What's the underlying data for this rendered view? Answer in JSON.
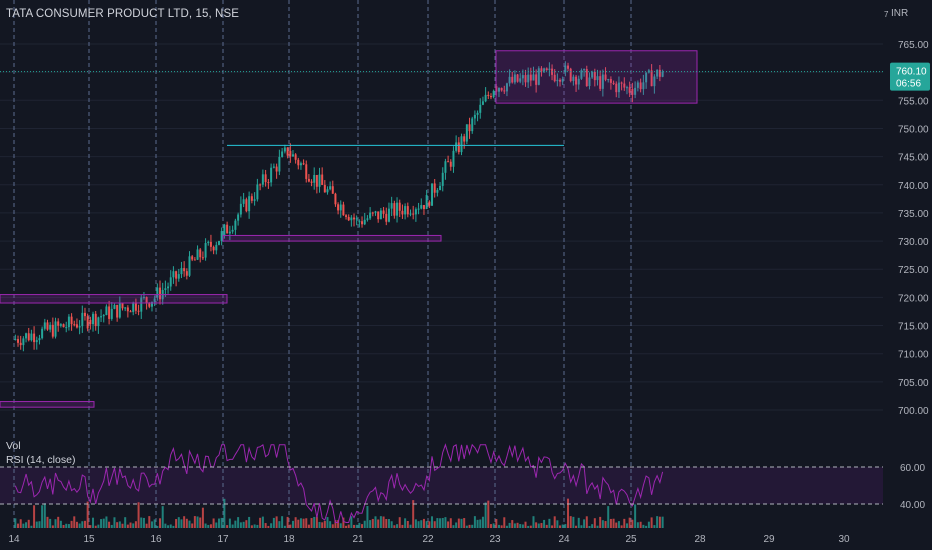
{
  "chart_data": [
    {
      "type": "candlestick",
      "title": "TATA CONSUMER PRODUCT LTD, 15, NSE",
      "currency": "INR",
      "x_ticks": [
        "14",
        "15",
        "16",
        "17",
        "18",
        "21",
        "22",
        "23",
        "24",
        "25",
        "28",
        "29",
        "30"
      ],
      "y_ticks": [
        700,
        705,
        710,
        715,
        720,
        725,
        730,
        735,
        740,
        745,
        750,
        755,
        760,
        765
      ],
      "ylim": [
        697,
        768
      ],
      "price_tag": {
        "value": "760.10",
        "countdown": "06:56",
        "color": "#26a69a"
      },
      "series_anchor_prices_by_day": [
        {
          "day": "14",
          "open": 712.5,
          "close": 716.0
        },
        {
          "day": "15",
          "open": 716.0,
          "close": 720.0
        },
        {
          "day": "16",
          "open": 720.0,
          "close": 731.0
        },
        {
          "day": "17",
          "open": 731.0,
          "close": 746.0
        },
        {
          "day": "18",
          "open": 746.0,
          "close": 733.5
        },
        {
          "day": "21",
          "open": 733.5,
          "close": 737.0
        },
        {
          "day": "22",
          "open": 737.0,
          "close": 757.5
        },
        {
          "day": "23",
          "open": 757.5,
          "close": 760.0
        },
        {
          "day": "24",
          "open": 760.0,
          "close": 757.0
        },
        {
          "day": "25",
          "open": 757.0,
          "close": 760.1
        }
      ],
      "annotations": [
        {
          "kind": "zone",
          "price_low": 719.0,
          "price_high": 720.5,
          "from_day": "14",
          "to_day": "17",
          "color": "#9c27b0"
        },
        {
          "kind": "zone",
          "price_low": 700.5,
          "price_high": 701.5,
          "from_day": "14",
          "to_day": "15",
          "color": "#9c27b0"
        },
        {
          "kind": "zone",
          "price_low": 730.0,
          "price_high": 731.0,
          "from_day": "17",
          "to_day": "22",
          "color": "#9c27b0"
        },
        {
          "kind": "trendline",
          "price": 747.0,
          "from_day": "17",
          "to_day": "24",
          "color": "#26c6da"
        },
        {
          "kind": "range_box",
          "price_low": 754.5,
          "price_high": 763.8,
          "from_day": "23",
          "to_day": "25",
          "color": "#9c27b0"
        }
      ]
    },
    {
      "type": "line",
      "label": "RSI (14, close)",
      "levels": [
        40.0,
        60.0
      ],
      "level_labels": [
        "60.00",
        "40.00"
      ],
      "color": "#9c27b0"
    },
    {
      "type": "bar",
      "label": "Vol",
      "up_color": "#26a69a",
      "down_color": "#ef5350"
    }
  ],
  "colors": {
    "background": "#131722",
    "up": "#26a69a",
    "down": "#ef5350",
    "session_line": "#5b6b8f",
    "grid": "#1f2433"
  }
}
